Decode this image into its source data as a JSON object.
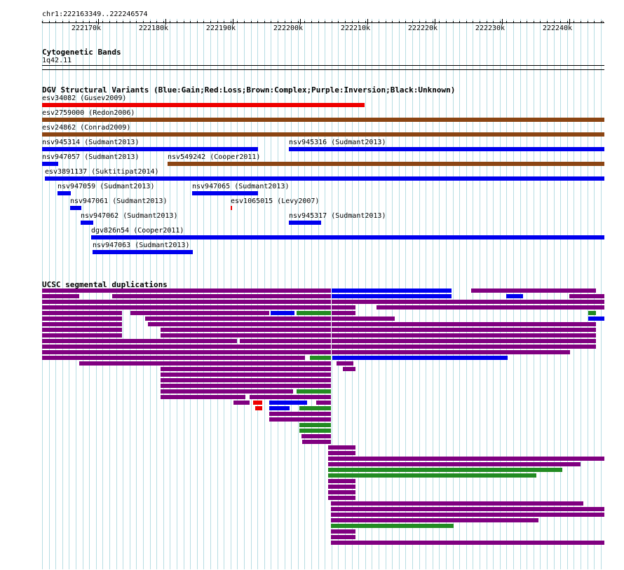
{
  "ruler": {
    "location": "chr1:222163349..222246574",
    "ticks": [
      "222170k",
      "222180k",
      "222190k",
      "222200k",
      "222210k",
      "222220k",
      "222230k",
      "222240k"
    ]
  },
  "cytoband": {
    "title": "Cytogenetic Bands",
    "band": "1q42.11"
  },
  "dgv": {
    "title": "DGV Structural Variants (Blue:Gain;Red:Loss;Brown:Complex;Purple:Inversion;Black:Unknown)",
    "variants": [
      {
        "label": "esv34082 (Gusev2009)",
        "type": "loss"
      },
      {
        "label": "esv2759000 (Redon2006)",
        "type": "complex"
      },
      {
        "label": "esv24862 (Conrad2009)",
        "type": "complex"
      },
      {
        "label": "nsv945314 (Sudmant2013)",
        "type": "gain"
      },
      {
        "label": "nsv945316 (Sudmant2013)",
        "type": "gain"
      },
      {
        "label": "nsv947057 (Sudmant2013)",
        "type": "gain"
      },
      {
        "label": "nsv549242 (Cooper2011)",
        "type": "complex"
      },
      {
        "label": "esv3891137 (Suktitipat2014)",
        "type": "gain"
      },
      {
        "label": "nsv947059 (Sudmant2013)",
        "type": "gain"
      },
      {
        "label": "nsv947065 (Sudmant2013)",
        "type": "gain"
      },
      {
        "label": "nsv947061 (Sudmant2013)",
        "type": "gain"
      },
      {
        "label": "esv1065015 (Levy2007)",
        "type": "loss"
      },
      {
        "label": "nsv947062 (Sudmant2013)",
        "type": "gain"
      },
      {
        "label": "nsv945317 (Sudmant2013)",
        "type": "gain"
      },
      {
        "label": "dgv826n54 (Cooper2011)",
        "type": "gain"
      },
      {
        "label": "nsv947063 (Sudmant2013)",
        "type": "gain"
      }
    ]
  },
  "segdups": {
    "title": "UCSC segmental duplications"
  },
  "colors": {
    "gain": "#0000ee",
    "loss": "#ee0000",
    "complex": "#8b4513",
    "inversion": "#800080",
    "segdup_purple": "#800080",
    "segdup_green": "#228b22",
    "segdup_blue": "#0000ee",
    "segdup_red": "#ee0000",
    "grid": "#b7dde3"
  }
}
